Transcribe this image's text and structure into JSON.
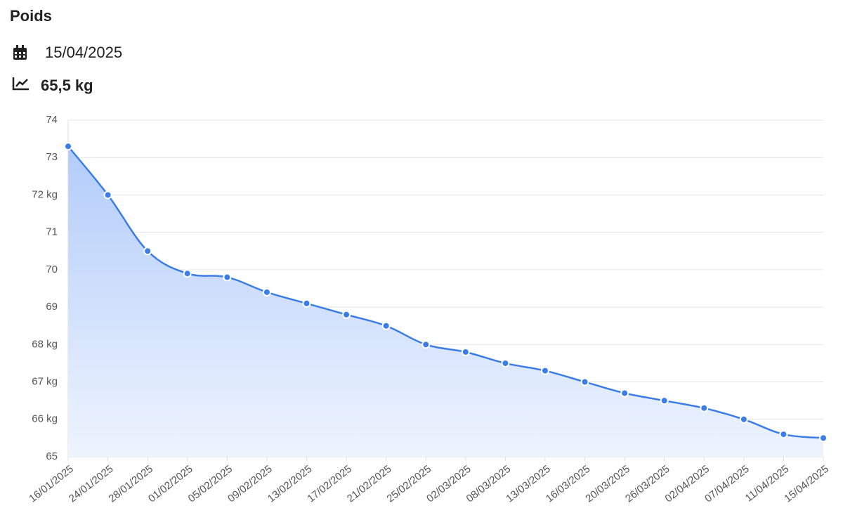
{
  "header": {
    "title": "Poids",
    "date": "15/04/2025",
    "value": "65,5 kg"
  },
  "chart_data": {
    "type": "line",
    "area": true,
    "color": "#3b7de6",
    "categories": [
      "16/01/2025",
      "24/01/2025",
      "28/01/2025",
      "01/02/2025",
      "05/02/2025",
      "09/02/2025",
      "13/02/2025",
      "17/02/2025",
      "21/02/2025",
      "25/02/2025",
      "02/03/2025",
      "08/03/2025",
      "13/03/2025",
      "16/03/2025",
      "20/03/2025",
      "26/03/2025",
      "02/04/2025",
      "07/04/2025",
      "11/04/2025",
      "15/04/2025"
    ],
    "values": [
      73.3,
      72.0,
      70.5,
      69.9,
      69.8,
      69.4,
      69.1,
      68.8,
      68.5,
      68.0,
      67.8,
      67.5,
      67.3,
      67.0,
      66.7,
      66.5,
      66.3,
      66.0,
      65.6,
      65.5
    ],
    "ylim": [
      65,
      74
    ],
    "yticks": [
      65,
      {
        "value": 66,
        "label": "66 kg"
      },
      {
        "value": 67,
        "label": "67 kg"
      },
      {
        "value": 68,
        "label": "68 kg"
      },
      69,
      70,
      71,
      {
        "value": 72,
        "label": "72 kg"
      },
      73,
      74
    ],
    "grid": true
  }
}
